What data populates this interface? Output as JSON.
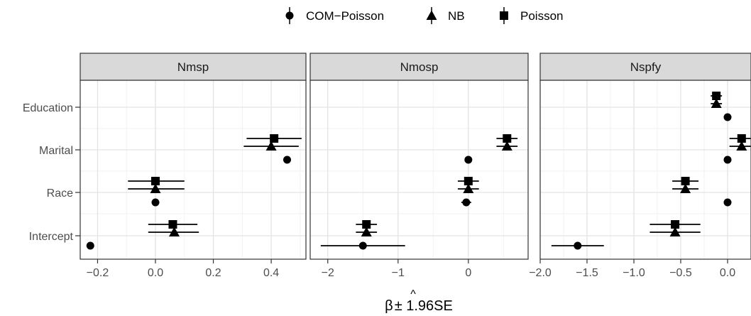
{
  "chart_data": {
    "type": "scatter",
    "subtype": "forest-plot-with-error-bars",
    "xlabel_symbol": "β",
    "xlabel_rest": "± 1.96SE",
    "legend": {
      "placement": "top",
      "entries": [
        {
          "name": "COM−Poisson",
          "shape": "circle"
        },
        {
          "name": "NB",
          "shape": "triangle"
        },
        {
          "name": "Poisson",
          "shape": "square"
        }
      ]
    },
    "categories": [
      "Intercept",
      "Race",
      "Marital",
      "Education"
    ],
    "grid": true,
    "facets": [
      {
        "title": "Nmsp",
        "xlim": [
          -0.26,
          0.52
        ],
        "xticks": [
          -0.2,
          0.0,
          0.2,
          0.4
        ],
        "xtick_labels": [
          "−0.2",
          "0.0",
          "0.2",
          "0.4"
        ],
        "series": [
          {
            "name": "COM−Poisson",
            "points": [
              {
                "category": "Intercept",
                "est": -0.225
              },
              {
                "category": "Race",
                "est": 0.0
              },
              {
                "category": "Marital",
                "est": 0.455
              },
              {
                "category": "Education",
                "est": null
              }
            ]
          },
          {
            "name": "NB",
            "points": [
              {
                "category": "Intercept",
                "est": 0.065,
                "lo": -0.025,
                "hi": 0.15
              },
              {
                "category": "Race",
                "est": 0.0,
                "lo": -0.095,
                "hi": 0.1
              },
              {
                "category": "Marital",
                "est": 0.4,
                "lo": 0.305,
                "hi": 0.495
              },
              {
                "category": "Education",
                "est": null
              }
            ]
          },
          {
            "name": "Poisson",
            "points": [
              {
                "category": "Intercept",
                "est": 0.06,
                "lo": -0.025,
                "hi": 0.145
              },
              {
                "category": "Race",
                "est": 0.0,
                "lo": -0.095,
                "hi": 0.1
              },
              {
                "category": "Marital",
                "est": 0.41,
                "lo": 0.315,
                "hi": 0.505
              },
              {
                "category": "Education",
                "est": null
              }
            ]
          }
        ]
      },
      {
        "title": "Nmosp",
        "xlim": [
          -2.25,
          0.85
        ],
        "xticks": [
          -2,
          -1,
          0
        ],
        "xtick_labels": [
          "−2",
          "−1",
          "0"
        ],
        "series": [
          {
            "name": "COM−Poisson",
            "points": [
              {
                "category": "Intercept",
                "est": -1.5,
                "lo": -2.1,
                "hi": -0.9
              },
              {
                "category": "Race",
                "est": -0.03,
                "lo": -0.1,
                "hi": 0.04
              },
              {
                "category": "Marital",
                "est": 0.0
              },
              {
                "category": "Education",
                "est": null
              }
            ]
          },
          {
            "name": "NB",
            "points": [
              {
                "category": "Intercept",
                "est": -1.45,
                "lo": -1.6,
                "hi": -1.3
              },
              {
                "category": "Race",
                "est": 0.0,
                "lo": -0.15,
                "hi": 0.15
              },
              {
                "category": "Marital",
                "est": 0.55,
                "lo": 0.4,
                "hi": 0.7
              },
              {
                "category": "Education",
                "est": null
              }
            ]
          },
          {
            "name": "Poisson",
            "points": [
              {
                "category": "Intercept",
                "est": -1.45,
                "lo": -1.6,
                "hi": -1.3
              },
              {
                "category": "Race",
                "est": 0.0,
                "lo": -0.15,
                "hi": 0.15
              },
              {
                "category": "Marital",
                "est": 0.55,
                "lo": 0.4,
                "hi": 0.7
              },
              {
                "category": "Education",
                "est": null
              }
            ]
          }
        ]
      },
      {
        "title": "Nspfy",
        "xlim": [
          -2.0,
          0.25
        ],
        "xticks": [
          -2.0,
          -1.5,
          -1.0,
          -0.5,
          0.0
        ],
        "xtick_labels": [
          "−2.0",
          "−1.5",
          "−1.0",
          "−0.5",
          "0.0"
        ],
        "series": [
          {
            "name": "COM−Poisson",
            "points": [
              {
                "category": "Intercept",
                "est": -1.6,
                "lo": -1.88,
                "hi": -1.32
              },
              {
                "category": "Race",
                "est": 0.0
              },
              {
                "category": "Marital",
                "est": 0.0
              },
              {
                "category": "Education",
                "est": 0.0
              }
            ]
          },
          {
            "name": "NB",
            "points": [
              {
                "category": "Intercept",
                "est": -0.56,
                "lo": -0.83,
                "hi": -0.29
              },
              {
                "category": "Race",
                "est": -0.45,
                "lo": -0.59,
                "hi": -0.31
              },
              {
                "category": "Marital",
                "est": 0.15,
                "lo": 0.02,
                "hi": 0.28
              },
              {
                "category": "Education",
                "est": -0.12,
                "lo": -0.18,
                "hi": -0.06
              }
            ]
          },
          {
            "name": "Poisson",
            "points": [
              {
                "category": "Intercept",
                "est": -0.56,
                "lo": -0.83,
                "hi": -0.29
              },
              {
                "category": "Race",
                "est": -0.45,
                "lo": -0.59,
                "hi": -0.31
              },
              {
                "category": "Marital",
                "est": 0.15,
                "lo": 0.02,
                "hi": 0.28
              },
              {
                "category": "Education",
                "est": -0.12,
                "lo": -0.18,
                "hi": -0.06
              }
            ]
          }
        ]
      }
    ]
  }
}
